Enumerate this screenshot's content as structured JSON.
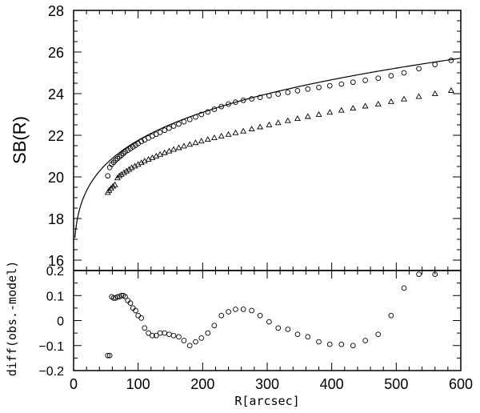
{
  "chart_data": [
    {
      "type": "scatter",
      "panel": "top",
      "ylabel": "SB(R)",
      "xlabel": "",
      "xlim": [
        0,
        600
      ],
      "ylim": [
        15.5,
        28
      ],
      "x_ticks": [
        0,
        100,
        200,
        300,
        400,
        500,
        600
      ],
      "y_ticks": [
        16,
        18,
        20,
        22,
        24,
        26,
        28
      ],
      "y_tick_labels": [
        "16",
        "18",
        "20",
        "22",
        "24",
        "26",
        "28"
      ],
      "grid": false,
      "series": [
        {
          "marker": "circle",
          "x": [
            53,
            56,
            59,
            62,
            65,
            68,
            71,
            74,
            77,
            80,
            84,
            88,
            92,
            96,
            100,
            105,
            110,
            116,
            122,
            128,
            134,
            141,
            148,
            155,
            163,
            171,
            180,
            189,
            198,
            208,
            218,
            229,
            240,
            251,
            263,
            276,
            289,
            303,
            317,
            332,
            347,
            363,
            380,
            397,
            415,
            433,
            452,
            472,
            492,
            512,
            535,
            560,
            585
          ],
          "y": [
            20.05,
            20.45,
            20.6,
            20.7,
            20.8,
            20.88,
            20.96,
            21.04,
            21.12,
            21.2,
            21.28,
            21.36,
            21.44,
            21.52,
            21.6,
            21.7,
            21.78,
            21.87,
            21.96,
            22.05,
            22.14,
            22.24,
            22.34,
            22.44,
            22.54,
            22.65,
            22.76,
            22.88,
            23.0,
            23.12,
            23.25,
            23.38,
            23.5,
            23.59,
            23.68,
            23.75,
            23.82,
            23.9,
            23.98,
            24.06,
            24.14,
            24.22,
            24.3,
            24.38,
            24.46,
            24.55,
            24.64,
            24.74,
            24.86,
            25.0,
            25.2,
            25.4,
            25.6
          ]
        },
        {
          "marker": "triangle",
          "x": [
            53,
            55,
            58,
            61,
            64,
            68,
            71,
            74,
            78,
            82,
            86,
            90,
            95,
            100,
            105,
            110,
            116,
            122,
            128,
            134,
            141,
            148,
            155,
            163,
            171,
            180,
            189,
            198,
            208,
            218,
            229,
            240,
            251,
            263,
            276,
            289,
            303,
            317,
            332,
            347,
            363,
            380,
            397,
            415,
            433,
            452,
            472,
            492,
            512,
            535,
            560,
            585
          ],
          "y": [
            19.25,
            19.35,
            19.45,
            19.55,
            19.62,
            19.95,
            20.05,
            20.12,
            20.2,
            20.28,
            20.36,
            20.44,
            20.52,
            20.6,
            20.68,
            20.76,
            20.84,
            20.92,
            21.0,
            21.08,
            21.16,
            21.24,
            21.32,
            21.4,
            21.48,
            21.56,
            21.64,
            21.72,
            21.8,
            21.88,
            21.96,
            22.04,
            22.12,
            22.2,
            22.3,
            22.4,
            22.5,
            22.6,
            22.7,
            22.8,
            22.9,
            23.0,
            23.1,
            23.2,
            23.3,
            23.4,
            23.5,
            23.62,
            23.74,
            23.86,
            24.0,
            24.15
          ]
        }
      ],
      "model_curve": {
        "function": "sersic",
        "mu_e": 23.1,
        "r_e": 200,
        "n": 4.5,
        "b": 8.67,
        "x_range": [
          2,
          600
        ]
      }
    },
    {
      "type": "scatter",
      "panel": "bottom",
      "ylabel": "diff(obs.-model)",
      "xlabel": "R[arcsec]",
      "xlim": [
        0,
        600
      ],
      "ylim": [
        -0.2,
        0.2
      ],
      "x_ticks": [
        0,
        100,
        200,
        300,
        400,
        500,
        600
      ],
      "x_tick_labels": [
        "0",
        "100",
        "200",
        "300",
        "400",
        "500",
        "600"
      ],
      "y_ticks": [
        -0.2,
        -0.1,
        0,
        0.1,
        0.2
      ],
      "y_tick_labels": [
        "−0.2",
        "−0.1",
        "0",
        "0.1",
        "0.2"
      ],
      "grid": false,
      "series": [
        {
          "marker": "circle",
          "x": [
            53,
            56,
            59,
            62,
            65,
            68,
            71,
            74,
            77,
            80,
            84,
            88,
            92,
            96,
            100,
            105,
            110,
            116,
            122,
            128,
            134,
            141,
            148,
            155,
            163,
            171,
            180,
            189,
            198,
            208,
            218,
            229,
            240,
            251,
            263,
            276,
            289,
            303,
            317,
            332,
            347,
            363,
            380,
            397,
            415,
            433,
            452,
            472,
            492,
            512,
            535,
            560
          ],
          "y": [
            -0.14,
            -0.14,
            0.095,
            0.09,
            0.09,
            0.095,
            0.095,
            0.1,
            0.1,
            0.095,
            0.08,
            0.07,
            0.05,
            0.04,
            0.02,
            0.01,
            -0.03,
            -0.05,
            -0.06,
            -0.06,
            -0.05,
            -0.05,
            -0.055,
            -0.06,
            -0.065,
            -0.08,
            -0.1,
            -0.085,
            -0.07,
            -0.05,
            -0.02,
            0.02,
            0.035,
            0.045,
            0.045,
            0.04,
            0.02,
            -0.005,
            -0.03,
            -0.035,
            -0.055,
            -0.065,
            -0.085,
            -0.095,
            -0.095,
            -0.1,
            -0.08,
            -0.055,
            0.02,
            0.13,
            0.185,
            0.185
          ]
        }
      ]
    }
  ]
}
